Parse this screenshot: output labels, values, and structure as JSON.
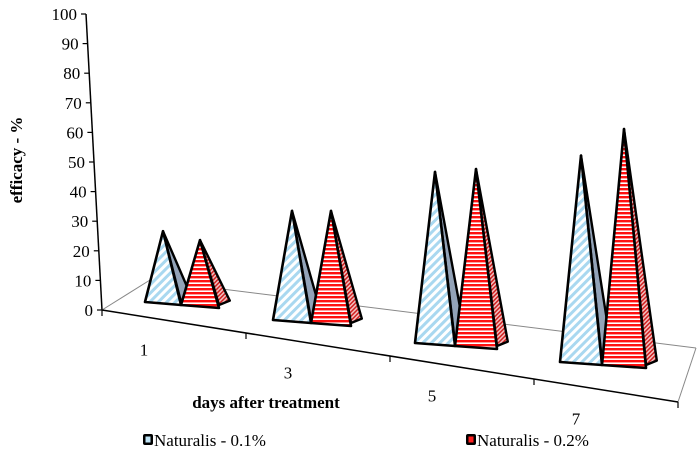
{
  "chart_data": {
    "type": "bar",
    "style": "3d-pyramid",
    "title": "",
    "xlabel": "days after treatment",
    "ylabel": "efficacy - %",
    "ylim": [
      0,
      100
    ],
    "yticks": [
      "0",
      "10",
      "20",
      "30",
      "40",
      "50",
      "60",
      "70",
      "80",
      "90",
      "100"
    ],
    "categories": [
      "1",
      "3",
      "5",
      "7"
    ],
    "series": [
      {
        "name": "Naturalis - 0.1%",
        "values": [
          24,
          37,
          58,
          70
        ],
        "color": "#a9d8f0"
      },
      {
        "name": "Naturalis - 0.2%",
        "values": [
          22,
          38,
          60,
          80
        ],
        "color": "#ff0000"
      }
    ],
    "grid": false,
    "legend": "bottom"
  }
}
